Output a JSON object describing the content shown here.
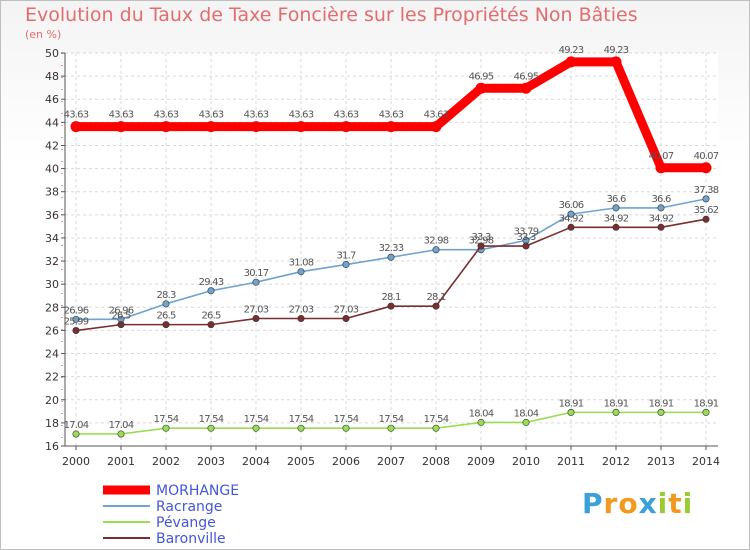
{
  "chart_data": {
    "type": "line",
    "title": "Evolution du Taux de Taxe Foncière sur les Propriétés Non Bâties",
    "ylabel": "(en %)",
    "xlabel": "",
    "x": [
      "2000",
      "2001",
      "2002",
      "2003",
      "2004",
      "2005",
      "2006",
      "2007",
      "2008",
      "2009",
      "2010",
      "2011",
      "2012",
      "2013",
      "2014"
    ],
    "ylim": [
      16,
      50
    ],
    "yticks": [
      16,
      18,
      20,
      22,
      24,
      26,
      28,
      30,
      32,
      34,
      36,
      38,
      40,
      42,
      44,
      46,
      48,
      50
    ],
    "grid": true,
    "legend_position": "bottom-left",
    "series": [
      {
        "name": "MORHANGE",
        "color": "#ff0000",
        "values": [
          43.63,
          43.63,
          43.63,
          43.63,
          43.63,
          43.63,
          43.63,
          43.63,
          43.63,
          46.95,
          46.95,
          49.23,
          49.23,
          40.07,
          40.07
        ],
        "labels": [
          "43.63",
          "43.63",
          "43.63",
          "43.63",
          "43.63",
          "43.63",
          "43.63",
          "43.63",
          "43.63",
          "46.95",
          "46.95",
          "49.23",
          "49.23",
          "40.07",
          "40.07"
        ]
      },
      {
        "name": "Racrange",
        "color": "#6fa3d0",
        "values": [
          26.96,
          26.96,
          28.3,
          29.43,
          30.17,
          31.08,
          31.7,
          32.33,
          32.98,
          32.98,
          33.79,
          36.06,
          36.6,
          36.6,
          37.38
        ],
        "labels": [
          "26.96",
          "26.96",
          "28.3",
          "29.43",
          "30.17",
          "31.08",
          "31.7",
          "32.33",
          "32.98",
          "32.98",
          "33.79",
          "36.06",
          "36.6",
          "36.6",
          "37.38"
        ]
      },
      {
        "name": "Pévange",
        "color": "#99dd55",
        "values": [
          17.04,
          17.04,
          17.54,
          17.54,
          17.54,
          17.54,
          17.54,
          17.54,
          17.54,
          18.04,
          18.04,
          18.91,
          18.91,
          18.91,
          18.91
        ],
        "labels": [
          "17.04",
          "17.04",
          "17.54",
          "17.54",
          "17.54",
          "17.54",
          "17.54",
          "17.54",
          "17.54",
          "18.04",
          "18.04",
          "18.91",
          "18.91",
          "18.91",
          "18.91"
        ]
      },
      {
        "name": "Baronville",
        "color": "#7a2e2e",
        "values": [
          25.99,
          26.5,
          26.5,
          26.5,
          27.03,
          27.03,
          27.03,
          28.1,
          28.1,
          33.3,
          33.3,
          34.92,
          34.92,
          34.92,
          35.62
        ],
        "labels": [
          "25.99",
          "26.5",
          "26.5",
          "26.5",
          "27.03",
          "27.03",
          "27.03",
          "28.1",
          "28.1",
          "33.3",
          "33.3",
          "34.92",
          "34.92",
          "34.92",
          "35.62"
        ]
      }
    ]
  },
  "brand": {
    "letters": [
      "P",
      "r",
      "o",
      "x",
      "i",
      "t",
      "i"
    ],
    "colors": [
      "#3aa0d8",
      "#f29a1e",
      "#f29a1e",
      "#3aa0d8",
      "#99cc33",
      "#f29a1e",
      "#99cc33"
    ]
  }
}
